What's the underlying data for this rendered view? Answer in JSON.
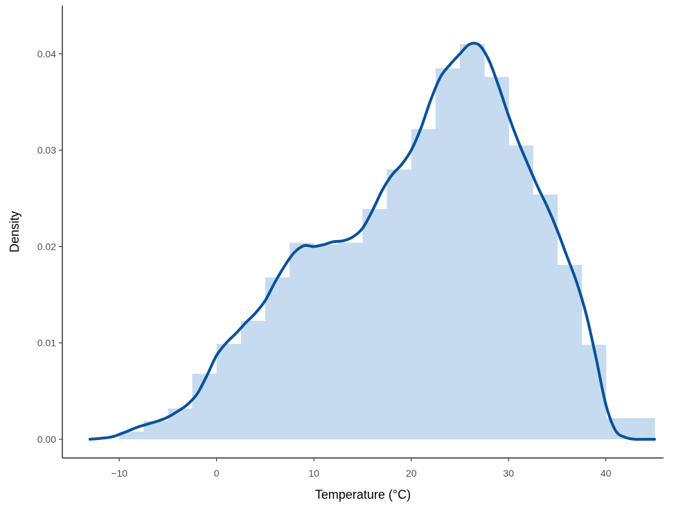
{
  "chart_data": {
    "type": "area",
    "subtype": "histogram-with-density",
    "title": "",
    "xlabel": "Temperature (°C)",
    "ylabel": "Density",
    "xlim": [
      -13,
      45
    ],
    "ylim": [
      0,
      0.042
    ],
    "x_ticks": [
      -10,
      0,
      10,
      20,
      30,
      40
    ],
    "x_tick_labels": [
      "−10",
      "0",
      "10",
      "20",
      "30",
      "40"
    ],
    "y_ticks": [
      0,
      0.01,
      0.02,
      0.03,
      0.04
    ],
    "y_tick_labels": [
      "0.00",
      "0.01",
      "0.02",
      "0.03",
      "0.04"
    ],
    "grid": false,
    "legend": "none",
    "colors": {
      "bars": "#c6dbef",
      "density_line": "#08519c",
      "axis": "#000000"
    },
    "histogram": {
      "bin_width": 2.5,
      "bins": [
        {
          "x0": -10.0,
          "x1": -7.5,
          "density": 0.0008
        },
        {
          "x0": -7.5,
          "x1": -5.0,
          "density": 0.0019
        },
        {
          "x0": -5.0,
          "x1": -2.5,
          "density": 0.0032
        },
        {
          "x0": -2.5,
          "x1": 0.0,
          "density": 0.0068
        },
        {
          "x0": 0.0,
          "x1": 2.5,
          "density": 0.0099
        },
        {
          "x0": 2.5,
          "x1": 5.0,
          "density": 0.0123
        },
        {
          "x0": 5.0,
          "x1": 7.5,
          "density": 0.0168
        },
        {
          "x0": 7.5,
          "x1": 10.0,
          "density": 0.0204
        },
        {
          "x0": 10.0,
          "x1": 12.5,
          "density": 0.0202
        },
        {
          "x0": 12.5,
          "x1": 15.0,
          "density": 0.0204
        },
        {
          "x0": 15.0,
          "x1": 17.5,
          "density": 0.0239
        },
        {
          "x0": 17.5,
          "x1": 20.0,
          "density": 0.028
        },
        {
          "x0": 20.0,
          "x1": 22.5,
          "density": 0.0322
        },
        {
          "x0": 22.5,
          "x1": 25.0,
          "density": 0.0385
        },
        {
          "x0": 25.0,
          "x1": 27.5,
          "density": 0.041
        },
        {
          "x0": 27.5,
          "x1": 30.0,
          "density": 0.0376
        },
        {
          "x0": 30.0,
          "x1": 32.5,
          "density": 0.0305
        },
        {
          "x0": 32.5,
          "x1": 35.0,
          "density": 0.0254
        },
        {
          "x0": 35.0,
          "x1": 37.5,
          "density": 0.0181
        },
        {
          "x0": 37.5,
          "x1": 40.0,
          "density": 0.0098
        },
        {
          "x0": 40.0,
          "x1": 42.5,
          "density": 0.0022
        },
        {
          "x0": 42.5,
          "x1": 45.0,
          "density": 0.0022
        }
      ]
    },
    "density_curve": {
      "x": [
        -13,
        -11,
        -10,
        -9,
        -8,
        -7,
        -6,
        -5,
        -4,
        -3,
        -2,
        -1,
        0,
        1,
        2,
        3,
        4,
        5,
        6,
        7,
        8,
        9,
        10,
        11,
        12,
        13,
        14,
        15,
        16,
        17,
        18,
        19,
        20,
        21,
        22,
        23,
        24,
        25,
        26,
        27,
        28,
        29,
        30,
        31,
        32,
        33,
        34,
        35,
        36,
        37,
        38,
        39,
        40,
        41,
        42,
        43,
        44,
        45
      ],
      "y": [
        0.0,
        0.0002,
        0.0005,
        0.0009,
        0.0013,
        0.0016,
        0.0019,
        0.0023,
        0.0029,
        0.0036,
        0.0047,
        0.0066,
        0.0087,
        0.01,
        0.011,
        0.0121,
        0.0131,
        0.0144,
        0.0163,
        0.018,
        0.0194,
        0.0201,
        0.02,
        0.0202,
        0.0205,
        0.0206,
        0.021,
        0.0219,
        0.0237,
        0.0258,
        0.0274,
        0.0285,
        0.03,
        0.0323,
        0.0352,
        0.0376,
        0.0389,
        0.04,
        0.041,
        0.0409,
        0.0393,
        0.0366,
        0.0336,
        0.0309,
        0.0285,
        0.0262,
        0.0241,
        0.0217,
        0.019,
        0.0163,
        0.0129,
        0.0084,
        0.0036,
        0.0009,
        0.0002,
        0.0,
        0.0,
        0.0
      ]
    }
  }
}
